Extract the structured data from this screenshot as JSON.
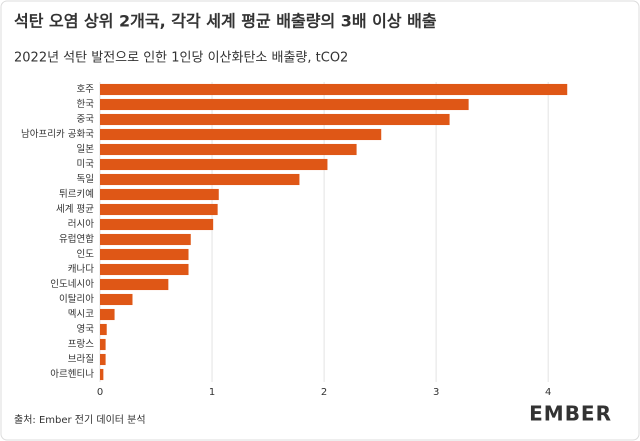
{
  "chart_data": {
    "type": "barh",
    "title": "석탄 오염 상위 2개국, 각각 세계 평균 배출량의 3배 이상 배출",
    "subtitle": "2022년 석탄 발전으로 인한 1인당 이산화탄소 배출량, tCO2",
    "categories": [
      "호주",
      "한국",
      "중국",
      "남아프리카 공화국",
      "일본",
      "미국",
      "독일",
      "튀르키예",
      "세계 평균",
      "러시아",
      "유럽연합",
      "인도",
      "캐나다",
      "인도네시아",
      "이탈리아",
      "멕시코",
      "영국",
      "프랑스",
      "브라질",
      "아르헨티나"
    ],
    "values": [
      4.17,
      3.29,
      3.12,
      2.51,
      2.29,
      2.03,
      1.78,
      1.06,
      1.05,
      1.01,
      0.81,
      0.79,
      0.79,
      0.61,
      0.29,
      0.13,
      0.06,
      0.05,
      0.05,
      0.03
    ],
    "color": "#df5716",
    "xlim": [
      0,
      4.4
    ],
    "xticks": [
      0,
      1,
      2,
      3,
      4
    ],
    "grid": true,
    "source": "출처: Ember 전기 데이터 분석",
    "logo": "EMBER"
  }
}
